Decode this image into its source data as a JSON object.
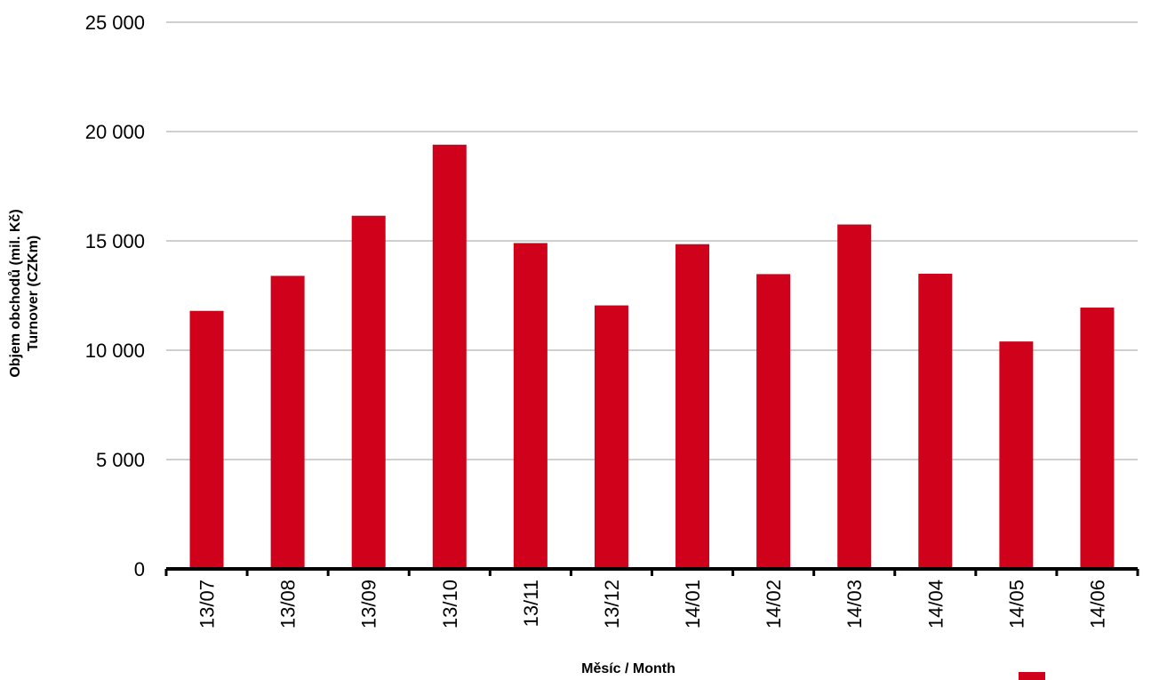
{
  "chart_data": {
    "type": "bar",
    "categories": [
      "13/07",
      "13/08",
      "13/09",
      "13/10",
      "13/11",
      "13/12",
      "14/01",
      "14/02",
      "14/03",
      "14/04",
      "14/05",
      "14/06"
    ],
    "values": [
      11800,
      13400,
      16150,
      19400,
      14900,
      12050,
      14850,
      13480,
      15750,
      13500,
      10400,
      11950
    ],
    "xlabel": "Měsíc / Month",
    "ylabel_line1": "Objem obchodů (mil. Kč)",
    "ylabel_line2": "Turnover (CZKm)",
    "ylim": [
      0,
      25000
    ],
    "yticks": [
      0,
      5000,
      10000,
      15000,
      20000,
      25000
    ],
    "ytick_labels": [
      "0",
      "5 000",
      "10 000",
      "15 000",
      "20 000",
      "25 000"
    ],
    "grid": true,
    "legend": "bottom-right",
    "bar_color": "#d0021b",
    "grid_color": "#bfbfbf",
    "axis_color": "#000000"
  }
}
